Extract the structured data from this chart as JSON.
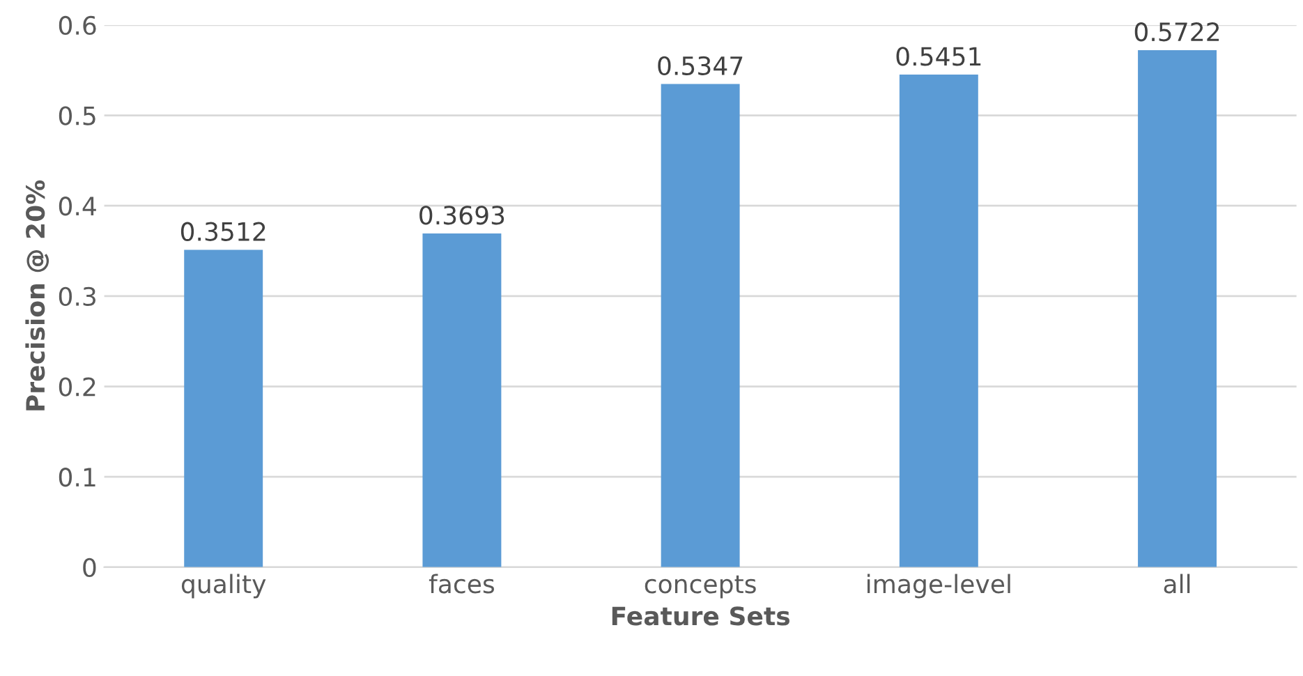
{
  "chart_data": {
    "type": "bar",
    "xlabel": "Feature Sets",
    "ylabel": "Precision @ 20%",
    "categories": [
      "quality",
      "faces",
      "concepts",
      "image-level",
      "all"
    ],
    "values": [
      0.3512,
      0.3693,
      0.5347,
      0.5451,
      0.5722
    ],
    "color": "#5b9bd5",
    "data_labels": true,
    "ylim": [
      0,
      0.6
    ],
    "yticks": [
      {
        "value": 0,
        "label": "0"
      },
      0.1,
      0.2,
      0.3,
      0.4,
      0.5,
      0.6
    ],
    "grid": "y",
    "legend": false
  }
}
